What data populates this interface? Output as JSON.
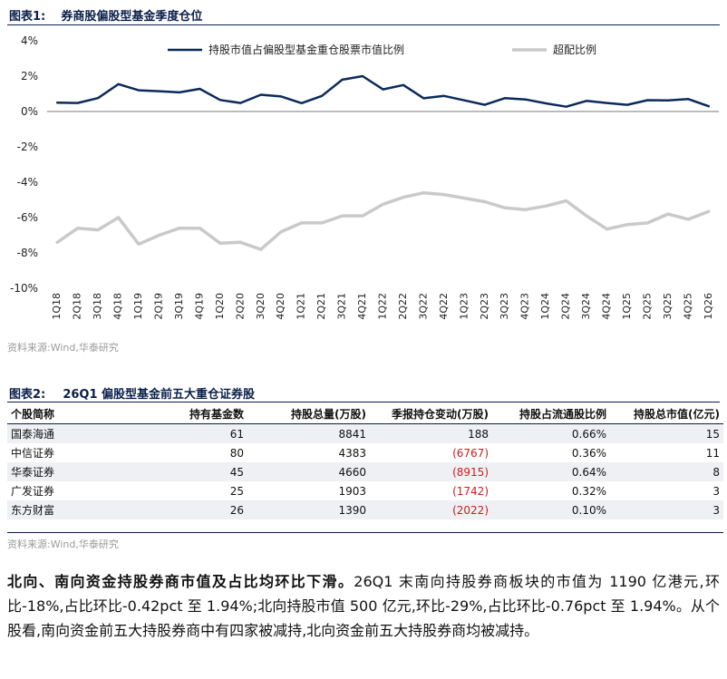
{
  "figure1": {
    "label": "图表1:",
    "title": "券商股偏股型基金季度仓位",
    "source": "资料来源:Wind,华泰研究"
  },
  "chart_data": {
    "type": "line",
    "title": "",
    "xlabel": "",
    "ylabel": "",
    "ylim": [
      -10,
      4
    ],
    "yticks": [
      "4%",
      "2%",
      "0%",
      "-2%",
      "-4%",
      "-6%",
      "-8%",
      "-10%"
    ],
    "ytick_values": [
      4,
      2,
      0,
      -2,
      -4,
      -6,
      -8,
      -10
    ],
    "categories": [
      "1Q18",
      "2Q18",
      "3Q18",
      "4Q18",
      "1Q19",
      "2Q19",
      "3Q19",
      "4Q19",
      "1Q20",
      "2Q20",
      "3Q20",
      "4Q20",
      "1Q21",
      "2Q21",
      "3Q21",
      "4Q21",
      "1Q22",
      "2Q22",
      "3Q22",
      "4Q22",
      "1Q23",
      "2Q23",
      "3Q23",
      "4Q23",
      "1Q24",
      "2Q24",
      "3Q24",
      "4Q24",
      "1Q25",
      "2Q25",
      "3Q25",
      "4Q25",
      "1Q26"
    ],
    "grid": false,
    "legend_position": "top",
    "series": [
      {
        "name": "持股市值占偏股型基金重仓股票市值比例",
        "color": "#0b2a5c",
        "values": [
          0.5,
          0.48,
          0.76,
          1.55,
          1.2,
          1.15,
          1.08,
          1.28,
          0.65,
          0.48,
          0.95,
          0.85,
          0.47,
          0.88,
          1.8,
          2.0,
          1.25,
          1.5,
          0.75,
          0.88,
          0.63,
          0.38,
          0.76,
          0.68,
          0.46,
          0.27,
          0.6,
          0.48,
          0.38,
          0.64,
          0.63,
          0.7,
          0.3
        ]
      },
      {
        "name": "超配比例",
        "color": "#c9c9c9",
        "values": [
          -7.4,
          -6.6,
          -6.7,
          -6.0,
          -7.5,
          -7.0,
          -6.6,
          -6.6,
          -7.45,
          -7.4,
          -7.8,
          -6.8,
          -6.3,
          -6.3,
          -5.9,
          -5.9,
          -5.25,
          -4.85,
          -4.6,
          -4.7,
          -4.9,
          -5.1,
          -5.45,
          -5.55,
          -5.35,
          -5.05,
          -5.9,
          -6.65,
          -6.4,
          -6.3,
          -5.8,
          -6.1,
          -5.65
        ]
      }
    ]
  },
  "figure2": {
    "label": "图表2:",
    "title": "26Q1 偏股型基金前五大重仓证券股",
    "source": "资料来源:Wind,华泰研究",
    "headers": [
      "个股简称",
      "持有基金数",
      "持股总量(万股)",
      "季报持仓变动(万股)",
      "持股占流通股比例",
      "持股总市值(亿元)"
    ],
    "rows": [
      [
        "国泰海通",
        "61",
        "8841",
        "188",
        "0.66%",
        "15"
      ],
      [
        "中信证券",
        "80",
        "4383",
        "(6767)",
        "0.36%",
        "11"
      ],
      [
        "华泰证券",
        "45",
        "4660",
        "(8915)",
        "0.64%",
        "8"
      ],
      [
        "广发证券",
        "25",
        "1903",
        "(1742)",
        "0.32%",
        "3"
      ],
      [
        "东方财富",
        "26",
        "1390",
        "(2022)",
        "0.10%",
        "3"
      ]
    ],
    "negative_color": "#d21a1a"
  },
  "paragraph": {
    "lead": "北向、南向资金持股券商市值及占比均环比下滑。",
    "body": "26Q1 末南向持股券商板块的市值为 1190 亿港元,环比-18%,占比环比-0.42pct 至 1.94%;北向持股市值 500 亿元,环比-29%,占比环比-0.76pct 至 1.94%。从个股看,南向资金前五大持股券商中有四家被减持,北向资金前五大持股券商均被减持。"
  }
}
